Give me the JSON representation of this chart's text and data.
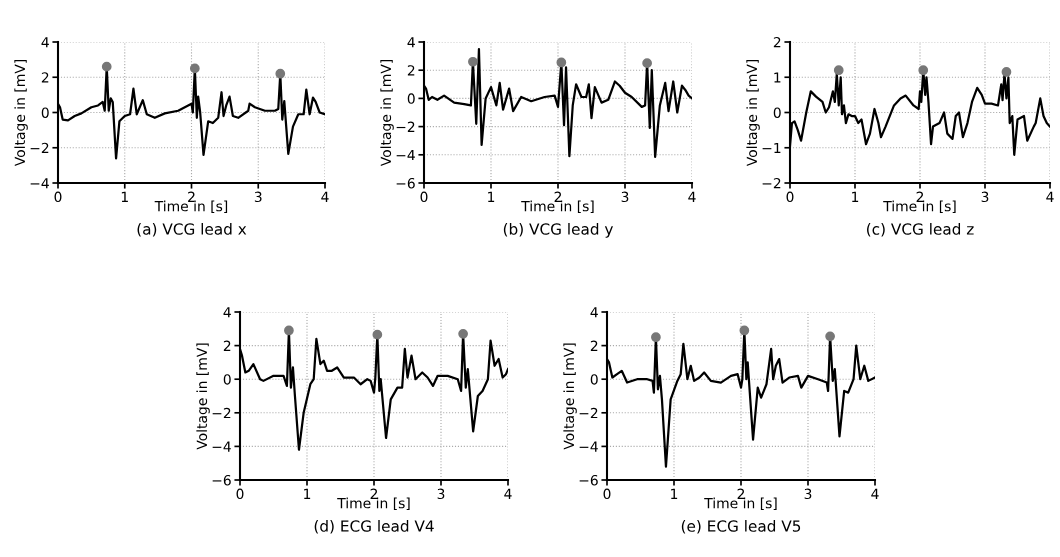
{
  "chart_data": [
    {
      "type": "line",
      "title": "(a) VCG lead x",
      "xlabel": "Time in [s]",
      "ylabel": "Voltage in [mV]",
      "xlim": [
        0,
        4
      ],
      "xticks": [
        0,
        1,
        2,
        3,
        4
      ],
      "ylim": [
        -4,
        4
      ],
      "yticks": [
        -4,
        -2,
        0,
        2,
        4
      ],
      "grid": true,
      "legend": false,
      "series": [
        {
          "color": "#000000",
          "marker": "none",
          "x": [
            0,
            0.03,
            0.07,
            0.15,
            0.25,
            0.35,
            0.5,
            0.6,
            0.67,
            0.7,
            0.73,
            0.76,
            0.79,
            0.82,
            0.87,
            0.92,
            1.0,
            1.08,
            1.13,
            1.18,
            1.27,
            1.33,
            1.45,
            1.6,
            1.8,
            1.95,
            2.0,
            2.02,
            2.05,
            2.08,
            2.1,
            2.13,
            2.18,
            2.25,
            2.32,
            2.4,
            2.45,
            2.48,
            2.52,
            2.57,
            2.62,
            2.7,
            2.85,
            2.87,
            2.95,
            3.1,
            3.25,
            3.3,
            3.33,
            3.36,
            3.39,
            3.45,
            3.52,
            3.6,
            3.68,
            3.72,
            3.77,
            3.82,
            3.86,
            3.92,
            4.0
          ],
          "values": [
            0.5,
            0.3,
            -0.4,
            -0.45,
            -0.2,
            -0.05,
            0.3,
            0.4,
            0.6,
            0.1,
            2.6,
            0.1,
            0.8,
            0.6,
            -2.6,
            -0.5,
            -0.2,
            -0.1,
            1.35,
            -0.1,
            0.7,
            -0.1,
            -0.3,
            -0.05,
            0.1,
            0.4,
            0.5,
            0.0,
            2.5,
            -0.3,
            0.9,
            0.0,
            -2.4,
            -0.5,
            -0.6,
            -0.3,
            1.15,
            -0.2,
            0.4,
            0.9,
            -0.2,
            -0.3,
            0.1,
            0.5,
            0.3,
            0.1,
            0.1,
            0.2,
            2.2,
            -0.4,
            0.65,
            -2.35,
            -0.8,
            -0.1,
            -0.1,
            1.3,
            -0.1,
            0.85,
            0.6,
            0.0,
            -0.1
          ]
        },
        {
          "type": "scatter",
          "color": "#777777",
          "marker": "circle",
          "x": [
            0.73,
            2.05,
            3.33
          ],
          "values": [
            2.6,
            2.5,
            2.2
          ]
        }
      ]
    },
    {
      "type": "line",
      "title": "(b) VCG lead y",
      "xlabel": "Time in [s]",
      "ylabel": "Voltage in [mV]",
      "xlim": [
        0,
        4
      ],
      "xticks": [
        0,
        1,
        2,
        3,
        4
      ],
      "ylim": [
        -6,
        4
      ],
      "yticks": [
        -6,
        -4,
        -2,
        0,
        2,
        4
      ],
      "grid": true,
      "legend": false,
      "series": [
        {
          "color": "#000000",
          "marker": "none",
          "x": [
            0,
            0.03,
            0.07,
            0.12,
            0.2,
            0.3,
            0.45,
            0.6,
            0.7,
            0.73,
            0.78,
            0.82,
            0.86,
            0.92,
            1.0,
            1.08,
            1.13,
            1.18,
            1.27,
            1.33,
            1.45,
            1.6,
            1.8,
            1.95,
            2.0,
            2.05,
            2.09,
            2.12,
            2.17,
            2.22,
            2.27,
            2.35,
            2.42,
            2.46,
            2.5,
            2.55,
            2.65,
            2.75,
            2.85,
            2.92,
            3.0,
            3.1,
            3.25,
            3.3,
            3.33,
            3.37,
            3.4,
            3.45,
            3.52,
            3.6,
            3.65,
            3.72,
            3.78,
            3.85,
            3.9,
            3.95,
            4.0
          ],
          "values": [
            0.9,
            0.7,
            -0.1,
            0.1,
            -0.1,
            0.2,
            -0.3,
            -0.4,
            -0.5,
            2.6,
            -1.8,
            3.5,
            -3.3,
            0.0,
            0.8,
            -0.5,
            1.1,
            -0.8,
            0.7,
            -0.9,
            0.1,
            -0.2,
            0.1,
            0.2,
            -0.6,
            2.55,
            -1.9,
            2.2,
            -4.1,
            -0.5,
            1.0,
            0.1,
            0.1,
            1.0,
            -1.4,
            0.8,
            -0.3,
            -0.1,
            1.2,
            0.9,
            0.4,
            0.1,
            -0.6,
            -0.5,
            2.5,
            -2.1,
            2.0,
            -4.15,
            -0.5,
            1.1,
            -0.9,
            1.2,
            -1.0,
            0.9,
            0.6,
            0.2,
            0.0
          ]
        },
        {
          "type": "scatter",
          "color": "#777777",
          "marker": "circle",
          "x": [
            0.73,
            2.05,
            3.33
          ],
          "values": [
            2.6,
            2.55,
            2.5
          ]
        }
      ]
    },
    {
      "type": "line",
      "title": "(c) VCG lead z",
      "xlabel": "Time in [s]",
      "ylabel": "Voltage in [mV]",
      "xlim": [
        0,
        4
      ],
      "xticks": [
        0,
        1,
        2,
        3,
        4
      ],
      "ylim": [
        -2,
        2
      ],
      "yticks": [
        -2,
        -1,
        0,
        1,
        2
      ],
      "grid": true,
      "legend": false,
      "series": [
        {
          "color": "#000000",
          "marker": "none",
          "x": [
            0,
            0.03,
            0.07,
            0.12,
            0.17,
            0.25,
            0.32,
            0.4,
            0.5,
            0.55,
            0.6,
            0.66,
            0.69,
            0.72,
            0.75,
            0.78,
            0.8,
            0.83,
            0.86,
            0.9,
            0.95,
            1.0,
            1.05,
            1.1,
            1.17,
            1.23,
            1.3,
            1.36,
            1.4,
            1.47,
            1.6,
            1.7,
            1.78,
            1.9,
            1.98,
            2.0,
            2.02,
            2.05,
            2.08,
            2.1,
            2.13,
            2.17,
            2.2,
            2.3,
            2.37,
            2.42,
            2.5,
            2.55,
            2.6,
            2.66,
            2.73,
            2.8,
            2.88,
            2.95,
            3.0,
            3.1,
            3.2,
            3.25,
            3.27,
            3.3,
            3.33,
            3.36,
            3.38,
            3.42,
            3.45,
            3.5,
            3.6,
            3.65,
            3.75,
            3.78,
            3.85,
            3.9,
            3.95,
            4.0
          ],
          "values": [
            -0.95,
            -0.3,
            -0.25,
            -0.5,
            -0.8,
            0.0,
            0.6,
            0.45,
            0.3,
            0.0,
            0.15,
            0.6,
            0.3,
            1.1,
            0.2,
            1.0,
            -0.05,
            0.2,
            -0.3,
            -0.05,
            -0.1,
            -0.1,
            -0.3,
            -0.2,
            -0.9,
            -0.6,
            0.1,
            -0.3,
            -0.7,
            -0.4,
            0.2,
            0.4,
            0.48,
            0.2,
            0.1,
            0.6,
            0.3,
            1.2,
            0.5,
            1.0,
            0.3,
            -0.9,
            -0.4,
            -0.3,
            0.0,
            -0.6,
            -0.75,
            -0.1,
            0.0,
            -0.7,
            -0.3,
            0.3,
            0.7,
            0.5,
            0.25,
            0.25,
            0.2,
            0.8,
            0.35,
            1.1,
            0.4,
            1.0,
            -0.3,
            -0.1,
            -1.2,
            -0.2,
            -0.1,
            -0.8,
            -0.4,
            -0.3,
            0.4,
            -0.1,
            -0.3,
            -0.4
          ]
        },
        {
          "type": "scatter",
          "color": "#777777",
          "marker": "circle",
          "x": [
            0.75,
            2.05,
            3.33
          ],
          "values": [
            1.2,
            1.2,
            1.15
          ]
        }
      ]
    },
    {
      "type": "line",
      "title": "(d) ECG lead V4",
      "xlabel": "Time in [s]",
      "ylabel": "Voltage in [mV]",
      "xlim": [
        0,
        4
      ],
      "xticks": [
        0,
        1,
        2,
        3,
        4
      ],
      "ylim": [
        -6,
        4
      ],
      "yticks": [
        -6,
        -4,
        -2,
        0,
        2,
        4
      ],
      "grid": true,
      "legend": false,
      "series": [
        {
          "color": "#000000",
          "marker": "none",
          "x": [
            0,
            0.03,
            0.08,
            0.13,
            0.2,
            0.3,
            0.35,
            0.5,
            0.65,
            0.7,
            0.73,
            0.76,
            0.79,
            0.82,
            0.88,
            0.95,
            1.05,
            1.1,
            1.14,
            1.2,
            1.25,
            1.3,
            1.37,
            1.45,
            1.55,
            1.7,
            1.8,
            1.9,
            1.95,
            2.0,
            2.02,
            2.05,
            2.08,
            2.1,
            2.18,
            2.25,
            2.35,
            2.42,
            2.46,
            2.5,
            2.56,
            2.62,
            2.72,
            2.8,
            2.88,
            2.95,
            3.1,
            3.25,
            3.3,
            3.33,
            3.37,
            3.4,
            3.48,
            3.55,
            3.62,
            3.7,
            3.74,
            3.8,
            3.86,
            3.92,
            3.97,
            4.0
          ],
          "values": [
            1.8,
            1.4,
            0.4,
            0.5,
            0.9,
            0.0,
            -0.1,
            0.2,
            0.2,
            -0.4,
            2.9,
            -0.5,
            0.7,
            -1.0,
            -4.2,
            -2.0,
            -0.3,
            0.0,
            2.4,
            0.9,
            1.1,
            0.5,
            0.5,
            0.7,
            0.1,
            0.1,
            -0.3,
            0.0,
            -0.1,
            -0.8,
            0.1,
            2.65,
            -0.7,
            0.0,
            -3.5,
            -1.2,
            -0.5,
            -0.5,
            1.8,
            0.1,
            1.4,
            0.0,
            0.4,
            0.1,
            -0.4,
            0.2,
            0.2,
            0.0,
            -0.7,
            2.7,
            -0.5,
            0.6,
            -3.1,
            -1.0,
            -0.7,
            0.0,
            2.3,
            0.8,
            1.2,
            0.1,
            0.3,
            0.6
          ]
        },
        {
          "type": "scatter",
          "color": "#777777",
          "marker": "circle",
          "x": [
            0.73,
            2.05,
            3.33
          ],
          "values": [
            2.9,
            2.65,
            2.7
          ]
        }
      ]
    },
    {
      "type": "line",
      "title": "(e) ECG lead V5",
      "xlabel": "Time in [s]",
      "ylabel": "Voltage in [mV]",
      "xlim": [
        0,
        4
      ],
      "xticks": [
        0,
        1,
        2,
        3,
        4
      ],
      "ylim": [
        -6,
        4
      ],
      "yticks": [
        -6,
        -4,
        -2,
        0,
        2,
        4
      ],
      "grid": true,
      "legend": false,
      "series": [
        {
          "color": "#000000",
          "marker": "none",
          "x": [
            0,
            0.03,
            0.08,
            0.15,
            0.22,
            0.3,
            0.45,
            0.6,
            0.68,
            0.7,
            0.73,
            0.76,
            0.79,
            0.82,
            0.88,
            0.95,
            1.05,
            1.1,
            1.14,
            1.2,
            1.25,
            1.3,
            1.38,
            1.45,
            1.55,
            1.7,
            1.85,
            1.95,
            2.0,
            2.02,
            2.05,
            2.08,
            2.1,
            2.18,
            2.25,
            2.3,
            2.38,
            2.45,
            2.48,
            2.52,
            2.57,
            2.62,
            2.72,
            2.85,
            2.9,
            3.0,
            3.15,
            3.28,
            3.3,
            3.33,
            3.37,
            3.4,
            3.47,
            3.54,
            3.6,
            3.68,
            3.72,
            3.78,
            3.84,
            3.9,
            4.0
          ],
          "values": [
            1.2,
            1.0,
            0.1,
            0.3,
            0.5,
            -0.2,
            0.0,
            0.0,
            -0.1,
            -0.8,
            2.5,
            -0.6,
            0.2,
            -1.2,
            -5.2,
            -1.2,
            -0.1,
            0.3,
            2.1,
            0.0,
            0.8,
            -0.1,
            0.1,
            0.4,
            -0.1,
            -0.2,
            0.2,
            0.3,
            -0.5,
            0.0,
            2.9,
            0.0,
            1.0,
            -3.6,
            -0.5,
            -1.1,
            -0.3,
            1.8,
            0.0,
            0.8,
            1.2,
            -0.2,
            0.1,
            0.2,
            -0.5,
            0.2,
            0.0,
            -0.2,
            -0.7,
            2.55,
            -0.1,
            0.6,
            -3.4,
            -0.7,
            -0.8,
            0.0,
            2.0,
            0.0,
            0.8,
            -0.1,
            0.1
          ]
        },
        {
          "type": "scatter",
          "color": "#777777",
          "marker": "circle",
          "x": [
            0.73,
            2.05,
            3.33
          ],
          "values": [
            2.5,
            2.9,
            2.55
          ]
        }
      ]
    }
  ]
}
